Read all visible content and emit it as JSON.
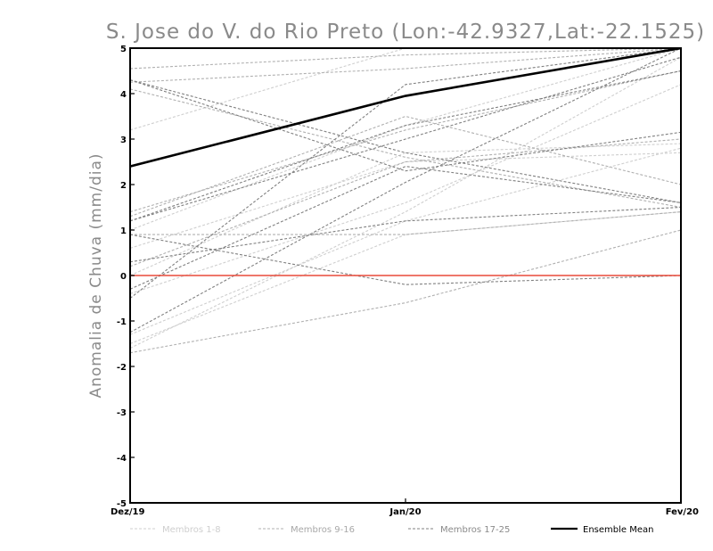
{
  "chart_data": {
    "type": "line",
    "title": "S. Jose do V. do Rio Preto (Lon:-42.9327,Lat:-22.1525)",
    "xlabel": "",
    "ylabel": "Anomalia de Chuva (mm/dia)",
    "ylim": [
      -5,
      5
    ],
    "yticks": [
      "-5",
      "-4",
      "-3",
      "-2",
      "-1",
      "0",
      "1",
      "2",
      "3",
      "4",
      "5"
    ],
    "categories": [
      "Dez/19",
      "Jan/20",
      "Fev/20"
    ],
    "grid": false,
    "legend_position": "bottom",
    "zero_line_color": "#e84a3a",
    "groups": [
      {
        "name": "Membros 1-8",
        "color": "#cfcfcf",
        "dashed": true
      },
      {
        "name": "Membros 9-16",
        "color": "#b0b0b0",
        "dashed": true
      },
      {
        "name": "Membros 17-25",
        "color": "#808080",
        "dashed": true
      },
      {
        "name": "Ensemble Mean",
        "color": "#000000",
        "dashed": false
      }
    ],
    "series": [
      {
        "group": 0,
        "values": [
          3.2,
          5.0,
          5.0
        ]
      },
      {
        "group": 0,
        "values": [
          -1.6,
          1.4,
          4.8
        ]
      },
      {
        "group": 0,
        "values": [
          -1.5,
          0.9,
          1.4
        ]
      },
      {
        "group": 0,
        "values": [
          0.0,
          2.7,
          2.9
        ]
      },
      {
        "group": 0,
        "values": [
          -1.3,
          1.2,
          2.8
        ]
      },
      {
        "group": 0,
        "values": [
          1.0,
          3.3,
          5.0
        ]
      },
      {
        "group": 0,
        "values": [
          -0.4,
          1.6,
          4.2
        ]
      },
      {
        "group": 0,
        "values": [
          0.6,
          2.5,
          2.7
        ]
      },
      {
        "group": 1,
        "values": [
          4.55,
          4.85,
          5.0
        ]
      },
      {
        "group": 1,
        "values": [
          4.25,
          4.55,
          5.0
        ]
      },
      {
        "group": 1,
        "values": [
          1.4,
          3.2,
          4.5
        ]
      },
      {
        "group": 1,
        "values": [
          0.2,
          2.5,
          3.0
        ]
      },
      {
        "group": 1,
        "values": [
          -1.7,
          -0.6,
          1.0
        ]
      },
      {
        "group": 1,
        "values": [
          4.1,
          2.6,
          1.5
        ]
      },
      {
        "group": 1,
        "values": [
          1.3,
          3.5,
          2.0
        ]
      },
      {
        "group": 1,
        "values": [
          0.9,
          0.9,
          1.4
        ]
      },
      {
        "group": 2,
        "values": [
          4.3,
          2.7,
          1.6
        ]
      },
      {
        "group": 2,
        "values": [
          4.3,
          2.3,
          3.15
        ]
      },
      {
        "group": 2,
        "values": [
          0.9,
          -0.2,
          0.0
        ]
      },
      {
        "group": 2,
        "values": [
          -0.5,
          4.2,
          5.0
        ]
      },
      {
        "group": 2,
        "values": [
          -1.25,
          2.05,
          5.0
        ]
      },
      {
        "group": 2,
        "values": [
          1.2,
          3.3,
          4.5
        ]
      },
      {
        "group": 2,
        "values": [
          0.3,
          1.2,
          1.5
        ]
      },
      {
        "group": 2,
        "values": [
          1.2,
          3.0,
          4.8
        ]
      },
      {
        "group": 2,
        "values": [
          -0.3,
          2.4,
          1.6
        ]
      },
      {
        "group": 3,
        "values": [
          2.4,
          3.95,
          5.0
        ]
      }
    ]
  }
}
